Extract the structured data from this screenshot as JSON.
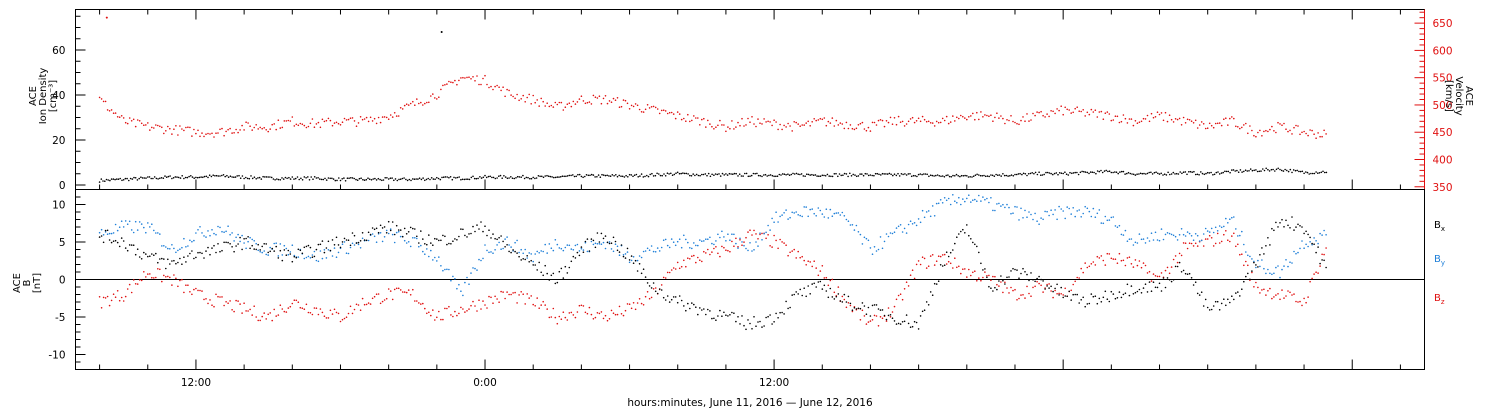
{
  "chart_data": [
    {
      "type": "scatter",
      "panel": "top",
      "ylabel_lines": [
        "ACE",
        "Ion Density",
        "[cm⁻³]"
      ],
      "ylim": [
        -2,
        78
      ],
      "yticks": [
        0,
        20,
        40,
        60
      ],
      "y2label_lines": [
        "ACE",
        "Velocity",
        "[km/s]"
      ],
      "y2lim": [
        345,
        675
      ],
      "y2ticks": [
        350,
        400,
        450,
        500,
        550,
        600,
        650
      ],
      "series": [
        {
          "axis": "left",
          "color": "#000000",
          "x": [
            -16,
            -15,
            -14,
            -13,
            -12,
            -11,
            -10,
            -9,
            -8,
            -7,
            -6,
            -5,
            -4,
            -3,
            -2,
            -1,
            0,
            1,
            2,
            3,
            4,
            5,
            6,
            7,
            8,
            9,
            10,
            11,
            12,
            13,
            14,
            15,
            16,
            17,
            18,
            19,
            20,
            21,
            22,
            23,
            24,
            25,
            26,
            27,
            28,
            29,
            30,
            31,
            32,
            33,
            34,
            35
          ],
          "y": [
            2,
            2.5,
            3,
            3.5,
            3.5,
            4,
            3.5,
            3,
            3,
            3,
            2.5,
            2.5,
            2.5,
            2.5,
            3,
            3,
            3.5,
            3.5,
            3.5,
            3.5,
            4,
            4,
            4,
            4.5,
            5,
            4.5,
            4.5,
            4.5,
            4.5,
            4.5,
            4.5,
            4.5,
            4.5,
            4.5,
            4.5,
            4,
            4,
            4.5,
            4.5,
            5,
            5,
            5.5,
            6,
            5,
            5,
            5.5,
            5,
            6,
            6.5,
            7,
            5.5,
            6
          ]
        },
        {
          "axis": "right",
          "color": "#e01010",
          "x": [
            -16,
            -15,
            -14,
            -13,
            -12,
            -11,
            -10,
            -9,
            -8,
            -7,
            -6,
            -5,
            -4,
            -3,
            -2,
            -1,
            0,
            1,
            2,
            3,
            4,
            5,
            6,
            7,
            8,
            9,
            10,
            11,
            12,
            13,
            14,
            15,
            16,
            17,
            18,
            19,
            20,
            21,
            22,
            23,
            24,
            25,
            26,
            27,
            28,
            29,
            30,
            31,
            32,
            33,
            34,
            35
          ],
          "y": [
            510,
            470,
            460,
            455,
            450,
            450,
            460,
            460,
            470,
            465,
            470,
            470,
            480,
            500,
            520,
            550,
            545,
            520,
            510,
            495,
            510,
            510,
            500,
            490,
            480,
            470,
            460,
            470,
            465,
            460,
            470,
            465,
            460,
            470,
            470,
            470,
            480,
            480,
            470,
            480,
            490,
            485,
            480,
            470,
            480,
            470,
            460,
            470,
            450,
            460,
            450,
            445
          ]
        }
      ],
      "spike": {
        "x": -1.8,
        "y": 68
      }
    },
    {
      "type": "scatter",
      "panel": "bottom",
      "ylabel_lines": [
        "ACE",
        "B",
        "[nT]"
      ],
      "ylim": [
        -12,
        12
      ],
      "yticks": [
        -10,
        -5,
        0,
        5,
        10
      ],
      "zero_line": true,
      "series": [
        {
          "name": "Bx",
          "color": "#000000",
          "x": [
            -16,
            -15,
            -14,
            -13,
            -12,
            -11,
            -10,
            -9,
            -8,
            -7,
            -6,
            -5,
            -4,
            -3,
            -2,
            -1,
            0,
            1,
            2,
            3,
            4,
            5,
            6,
            7,
            8,
            9,
            10,
            11,
            12,
            13,
            14,
            15,
            16,
            17,
            18,
            19,
            20,
            21,
            22,
            23,
            24,
            25,
            26,
            27,
            28,
            29,
            30,
            31,
            32,
            33,
            34,
            35
          ],
          "y": [
            6,
            5,
            3,
            2,
            3.5,
            4,
            5,
            4,
            3,
            4,
            5,
            6,
            7,
            6,
            5,
            6,
            7,
            4,
            2,
            0,
            4,
            6,
            3,
            -1,
            -3,
            -4,
            -5,
            -6,
            -5,
            -2,
            -1,
            -3,
            -4,
            -5,
            -6,
            2,
            7,
            -1,
            1,
            0,
            -2,
            -3,
            -2,
            -1,
            -1,
            2,
            -4,
            -3,
            2,
            8,
            7,
            1
          ]
        },
        {
          "name": "By",
          "color": "#1e7fd8",
          "x": [
            -16,
            -15,
            -14,
            -13,
            -12,
            -11,
            -10,
            -9,
            -8,
            -7,
            -6,
            -5,
            -4,
            -3,
            -2,
            -1,
            0,
            1,
            2,
            3,
            4,
            5,
            6,
            7,
            8,
            9,
            10,
            11,
            12,
            13,
            14,
            15,
            16,
            17,
            18,
            19,
            20,
            21,
            22,
            23,
            24,
            25,
            26,
            27,
            28,
            29,
            30,
            31,
            32,
            33,
            34,
            35
          ],
          "y": [
            6,
            7,
            7,
            4,
            6,
            7,
            5,
            4,
            4,
            3,
            4,
            5,
            6,
            5,
            3,
            -2,
            4,
            5,
            3,
            5,
            4,
            5,
            3,
            4,
            5,
            5,
            6,
            4,
            8,
            9,
            9,
            8,
            4,
            6,
            8,
            10,
            11,
            10,
            9,
            8,
            9,
            9,
            8,
            5,
            6,
            6,
            6,
            8,
            2,
            1,
            5,
            6
          ]
        },
        {
          "name": "Bz",
          "color": "#e01010",
          "x": [
            -16,
            -15,
            -14,
            -13,
            -12,
            -11,
            -10,
            -9,
            -8,
            -7,
            -6,
            -5,
            -4,
            -3,
            -2,
            -1,
            0,
            1,
            2,
            3,
            4,
            5,
            6,
            7,
            8,
            9,
            10,
            11,
            12,
            13,
            14,
            15,
            16,
            17,
            18,
            19,
            20,
            21,
            22,
            23,
            24,
            25,
            26,
            27,
            28,
            29,
            30,
            31,
            32,
            33,
            34,
            35
          ],
          "y": [
            -3,
            -2,
            1,
            0,
            -2,
            -3,
            -4,
            -5,
            -3,
            -4,
            -5,
            -3,
            -2,
            -2,
            -5,
            -4,
            -3,
            -2,
            -3,
            -5,
            -4,
            -5,
            -4,
            -2,
            2,
            3,
            4,
            6,
            5,
            3,
            1,
            -3,
            -6,
            -4,
            2,
            3,
            1,
            0,
            -2,
            -1,
            -2,
            2,
            3,
            2,
            0,
            4,
            5,
            6,
            -1,
            -2,
            -3,
            5
          ]
        }
      ],
      "legend_labels": [
        "B",
        "B",
        "B"
      ],
      "legend_subscripts": [
        "x",
        "y",
        "z"
      ]
    }
  ],
  "x_axis": {
    "xlim": [
      -17,
      39
    ],
    "ticks": [
      {
        "x": -12,
        "label": "12:00"
      },
      {
        "x": 0,
        "label": "0:00"
      },
      {
        "x": 12,
        "label": "12:00"
      }
    ],
    "minor_tick_step": 2,
    "xlabel": "hours:minutes, June 11, 2016 — June 12, 2016"
  },
  "colors": {
    "density": "#000000",
    "velocity": "#e01010",
    "bx": "#000000",
    "by": "#1e7fd8",
    "bz": "#e01010"
  }
}
